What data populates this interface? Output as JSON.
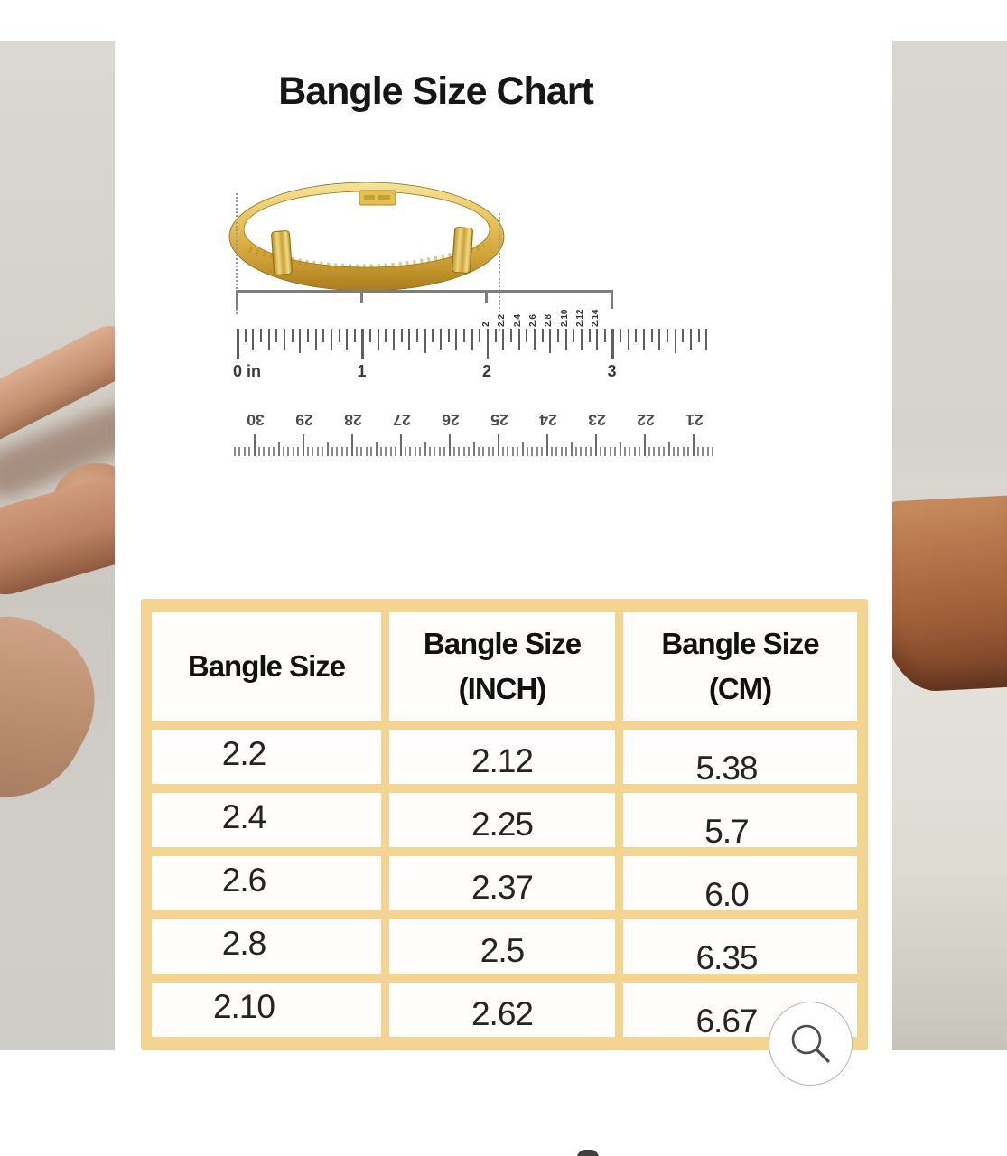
{
  "gallery": {
    "current_image_alt": "Bangle Size Chart",
    "zoom_button_icon": "magnifier-icon"
  },
  "size_chart": {
    "title": "Bangle Size Chart",
    "inch_ruler": {
      "labels": [
        "0 in",
        "1",
        "2",
        "3"
      ]
    },
    "size_markers": [
      "2",
      "2.2",
      "2.4",
      "2.6",
      "2.8",
      "2.10",
      "2.12",
      "2.14"
    ],
    "cm_ruler": {
      "labels": [
        "30",
        "29",
        "28",
        "27",
        "26",
        "25",
        "24",
        "23",
        "22",
        "21"
      ]
    },
    "table": {
      "headers": [
        {
          "line1": "Bangle Size",
          "line2": ""
        },
        {
          "line1": "Bangle Size",
          "line2": "(INCH)"
        },
        {
          "line1": "Bangle Size",
          "line2": "(CM)"
        }
      ],
      "rows": [
        [
          "2.2",
          "2.12",
          "5.38"
        ],
        [
          "2.4",
          "2.25",
          "5.7"
        ],
        [
          "2.6",
          "2.37",
          "6.0"
        ],
        [
          "2.8",
          "2.5",
          "6.35"
        ],
        [
          "2.10",
          "2.62",
          "6.67"
        ]
      ]
    }
  },
  "colors": {
    "table_border": "#f3d492",
    "gold": "#d4aa3f",
    "background": "#ffffff"
  }
}
